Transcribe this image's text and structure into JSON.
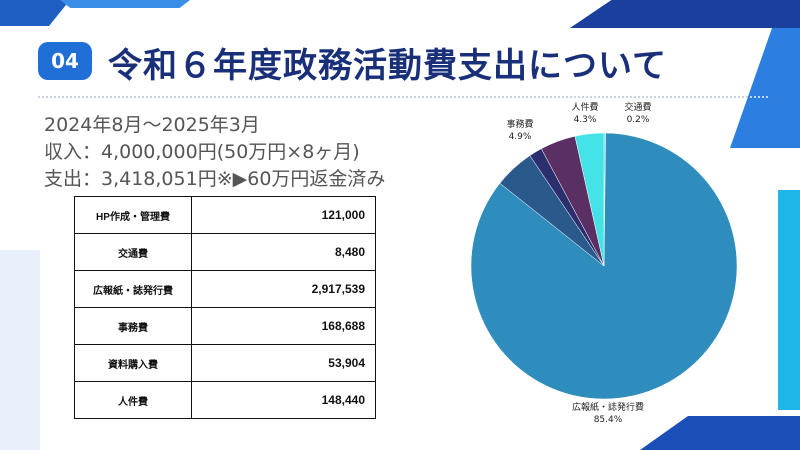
{
  "header": {
    "badge": "04",
    "title": "令和６年度政務活動費支出について"
  },
  "summary": {
    "period": "2024年8月～2025年3月",
    "income": "収入：4,000,000円(50万円×8ヶ月)",
    "spending": "支出：3,418,051円※▶60万円返金済み"
  },
  "table": {
    "rows": [
      {
        "label": "HP作成・管理費",
        "value": "121,000"
      },
      {
        "label": "交通費",
        "value": "8,480"
      },
      {
        "label": "広報紙・誌発行費",
        "value": "2,917,539"
      },
      {
        "label": "事務費",
        "value": "168,688"
      },
      {
        "label": "資料購入費",
        "value": "53,904"
      },
      {
        "label": "人件費",
        "value": "148,440"
      }
    ]
  },
  "chart_data": {
    "type": "pie",
    "slices": [
      {
        "name": "交通費",
        "value": 0.2,
        "percent_label": "0.2%",
        "color": "#4ad6e6"
      },
      {
        "name": "広報紙・誌発行費",
        "value": 85.4,
        "percent_label": "85.4%",
        "color": "#2e8dbd"
      },
      {
        "name": "事務費",
        "value": 4.9,
        "percent_label": "4.9%",
        "color": "#2a5a8c"
      },
      {
        "name": "資料購入費",
        "value": 1.6,
        "percent_label": "",
        "color": "#2b2f6e"
      },
      {
        "name": "人件費",
        "value": 4.3,
        "percent_label": "4.3%",
        "color": "#5a2f63"
      },
      {
        "name": "HP作成・管理費",
        "value": 3.5,
        "percent_label": "",
        "color": "#44e3e8"
      }
    ],
    "labelled": [
      "人件費",
      "交通費",
      "事務費",
      "広報紙・誌発行費"
    ]
  }
}
